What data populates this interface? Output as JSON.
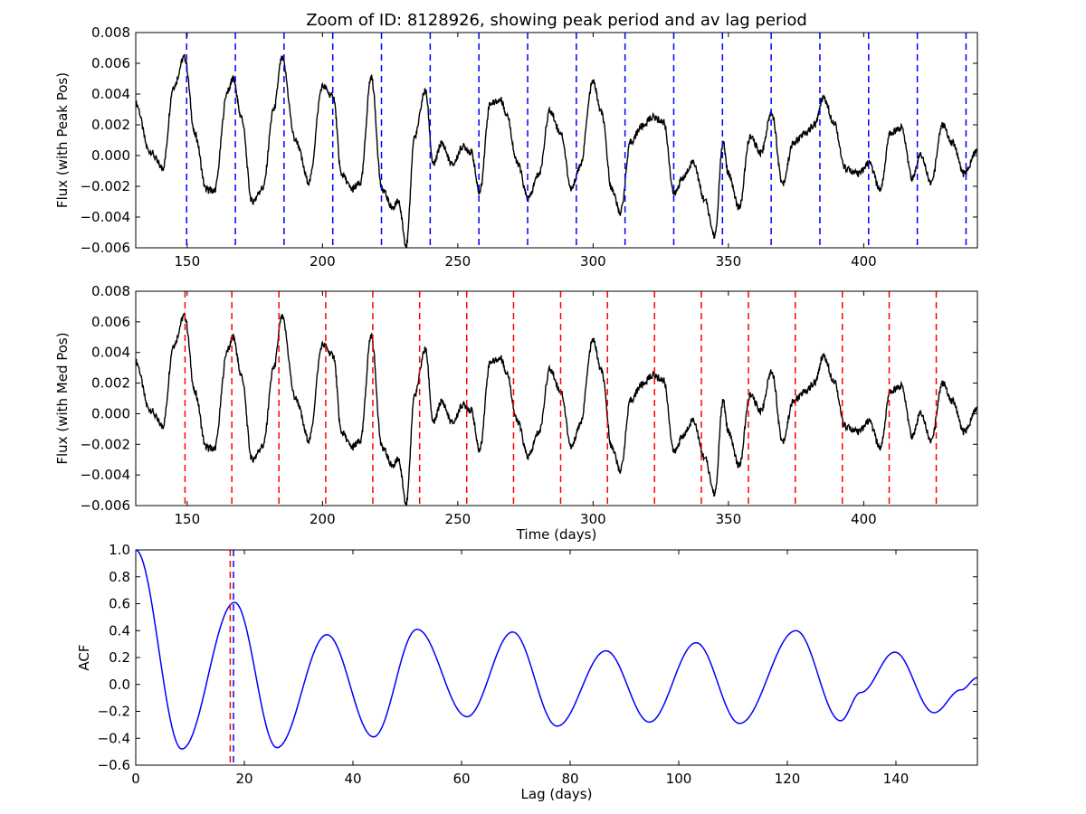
{
  "chart_data": [
    {
      "type": "line",
      "title": "Zoom of ID: 8128926, showing peak period and av lag period",
      "xlabel": "",
      "ylabel": "Flux (with Peak Pos)",
      "xlim": [
        131,
        442
      ],
      "ylim": [
        -0.006,
        0.008
      ],
      "xticks": [
        150,
        200,
        250,
        300,
        350,
        400
      ],
      "yticks": [
        -0.006,
        -0.004,
        -0.002,
        0.0,
        0.002,
        0.004,
        0.006,
        0.008
      ],
      "ytick_labels": [
        "−0.006",
        "−0.004",
        "−0.002",
        "0.000",
        "0.002",
        "0.004",
        "0.006",
        "0.008"
      ],
      "series": [
        {
          "color": "#000000",
          "x": [
            131,
            136,
            141,
            145,
            149,
            153,
            157,
            160,
            165,
            167,
            170,
            174,
            178,
            182,
            185,
            190,
            195,
            200,
            204,
            207,
            211,
            214,
            218,
            222,
            226,
            228,
            231,
            234,
            238,
            241,
            244,
            248,
            252,
            255,
            258,
            262,
            266,
            268,
            272,
            276,
            280,
            284,
            288,
            292,
            295,
            300,
            303,
            307,
            310,
            314,
            318,
            322,
            326,
            330,
            333,
            337,
            341,
            345,
            348,
            350,
            354,
            358,
            362,
            366,
            370,
            374,
            378,
            382,
            385,
            389,
            393,
            398,
            402,
            406,
            410,
            414,
            418,
            421,
            425,
            429,
            433,
            437,
            442
          ],
          "y": [
            0.0034,
            0.0003,
            -0.0008,
            0.0045,
            0.0064,
            0.0013,
            -0.0022,
            -0.0023,
            0.0042,
            0.005,
            0.0025,
            -0.003,
            -0.0021,
            0.003,
            0.0063,
            0.001,
            -0.0017,
            0.0045,
            0.0038,
            -0.0012,
            -0.0022,
            -0.0018,
            0.0051,
            -0.0022,
            -0.0034,
            -0.003,
            -0.0058,
            0.0012,
            0.0042,
            -0.0006,
            0.0008,
            -0.0006,
            0.0006,
            0.0002,
            -0.0024,
            0.0034,
            0.0036,
            0.0027,
            -0.0005,
            -0.0028,
            -0.0012,
            0.0029,
            0.0015,
            -0.0022,
            -0.0008,
            0.0048,
            0.0028,
            -0.0022,
            -0.0037,
            0.0009,
            0.0019,
            0.0025,
            0.0022,
            -0.0025,
            -0.0015,
            -0.0004,
            -0.0028,
            -0.0052,
            0.0008,
            -0.0012,
            -0.0034,
            0.0012,
            0.0002,
            0.0028,
            -0.0018,
            0.0008,
            0.0014,
            0.002,
            0.0038,
            0.0022,
            -0.0008,
            -0.0012,
            -0.0005,
            -0.0022,
            0.0015,
            0.0018,
            -0.0015,
            0.0001,
            -0.0018,
            0.002,
            0.0008,
            -0.0012,
            0.0003
          ]
        }
      ],
      "vlines": {
        "color": "#0000ff",
        "style": "dashed",
        "x": [
          149.8,
          167.8,
          185.8,
          203.8,
          221.8,
          239.8,
          257.8,
          275.8,
          293.8,
          311.8,
          329.8,
          347.8,
          365.8,
          383.8,
          401.8,
          419.8,
          437.8
        ]
      }
    },
    {
      "type": "line",
      "title": "",
      "xlabel": "Time (days)",
      "ylabel": "Flux (with Med Pos)",
      "xlim": [
        131,
        442
      ],
      "ylim": [
        -0.006,
        0.008
      ],
      "xticks": [
        150,
        200,
        250,
        300,
        350,
        400
      ],
      "yticks": [
        -0.006,
        -0.004,
        -0.002,
        0.0,
        0.002,
        0.004,
        0.006,
        0.008
      ],
      "ytick_labels": [
        "−0.006",
        "−0.004",
        "−0.002",
        "0.000",
        "0.002",
        "0.004",
        "0.006",
        "0.008"
      ],
      "series": [
        {
          "color": "#000000",
          "x": [
            131,
            136,
            141,
            145,
            149,
            153,
            157,
            160,
            165,
            167,
            170,
            174,
            178,
            182,
            185,
            190,
            195,
            200,
            204,
            207,
            211,
            214,
            218,
            222,
            226,
            228,
            231,
            234,
            238,
            241,
            244,
            248,
            252,
            255,
            258,
            262,
            266,
            268,
            272,
            276,
            280,
            284,
            288,
            292,
            295,
            300,
            303,
            307,
            310,
            314,
            318,
            322,
            326,
            330,
            333,
            337,
            341,
            345,
            348,
            350,
            354,
            358,
            362,
            366,
            370,
            374,
            378,
            382,
            385,
            389,
            393,
            398,
            402,
            406,
            410,
            414,
            418,
            421,
            425,
            429,
            433,
            437,
            442
          ],
          "y": [
            0.0034,
            0.0003,
            -0.0008,
            0.0045,
            0.0064,
            0.0013,
            -0.0022,
            -0.0023,
            0.0042,
            0.005,
            0.0025,
            -0.003,
            -0.0021,
            0.003,
            0.0063,
            0.001,
            -0.0017,
            0.0045,
            0.0038,
            -0.0012,
            -0.0022,
            -0.0018,
            0.0051,
            -0.0022,
            -0.0034,
            -0.003,
            -0.0058,
            0.0012,
            0.0042,
            -0.0006,
            0.0008,
            -0.0006,
            0.0006,
            0.0002,
            -0.0024,
            0.0034,
            0.0036,
            0.0027,
            -0.0005,
            -0.0028,
            -0.0012,
            0.0029,
            0.0015,
            -0.0022,
            -0.0008,
            0.0048,
            0.0028,
            -0.0022,
            -0.0037,
            0.0009,
            0.0019,
            0.0025,
            0.0022,
            -0.0025,
            -0.0015,
            -0.0004,
            -0.0028,
            -0.0052,
            0.0008,
            -0.0012,
            -0.0034,
            0.0012,
            0.0002,
            0.0028,
            -0.0018,
            0.0008,
            0.0014,
            0.002,
            0.0038,
            0.0022,
            -0.0008,
            -0.0012,
            -0.0005,
            -0.0022,
            0.0015,
            0.0018,
            -0.0015,
            0.0001,
            -0.0018,
            0.002,
            0.0008,
            -0.0012,
            0.0003
          ]
        }
      ],
      "vlines": {
        "color": "#ff0000",
        "style": "dashed",
        "x": [
          149.2,
          166.5,
          183.9,
          201.2,
          218.6,
          235.9,
          253.3,
          270.6,
          288.0,
          305.3,
          322.7,
          340.0,
          357.4,
          374.7,
          392.1,
          409.4,
          426.8
        ]
      }
    },
    {
      "type": "line",
      "title": "",
      "xlabel": "Lag (days)",
      "ylabel": "ACF",
      "xlim": [
        0,
        155
      ],
      "ylim": [
        -0.6,
        1.0
      ],
      "xticks": [
        0,
        20,
        40,
        60,
        80,
        100,
        120,
        140
      ],
      "yticks": [
        -0.6,
        -0.4,
        -0.2,
        0.0,
        0.2,
        0.4,
        0.6,
        0.8,
        1.0
      ],
      "ytick_labels": [
        "−0.6",
        "−0.4",
        "−0.2",
        "0.0",
        "0.2",
        "0.4",
        "0.6",
        "0.8",
        "1.0"
      ],
      "series": [
        {
          "color": "#0000ff",
          "x": [
            0,
            8.5,
            18.2,
            26,
            35.2,
            43.8,
            51.8,
            61,
            69.4,
            77.6,
            86.6,
            94.6,
            103.2,
            111.2,
            121.6,
            129.8,
            133.5,
            139.8,
            147,
            152,
            155
          ],
          "y": [
            1.0,
            -0.48,
            0.61,
            -0.47,
            0.37,
            -0.39,
            0.41,
            -0.24,
            0.39,
            -0.31,
            0.25,
            -0.28,
            0.31,
            -0.29,
            0.4,
            -0.27,
            -0.06,
            0.24,
            -0.21,
            -0.04,
            0.05
          ]
        }
      ],
      "vlines": [
        {
          "color": "#ff0000",
          "style": "dashed",
          "x": [
            17.4
          ]
        },
        {
          "color": "#0000ff",
          "style": "dashed",
          "x": [
            18.0
          ]
        }
      ]
    }
  ]
}
